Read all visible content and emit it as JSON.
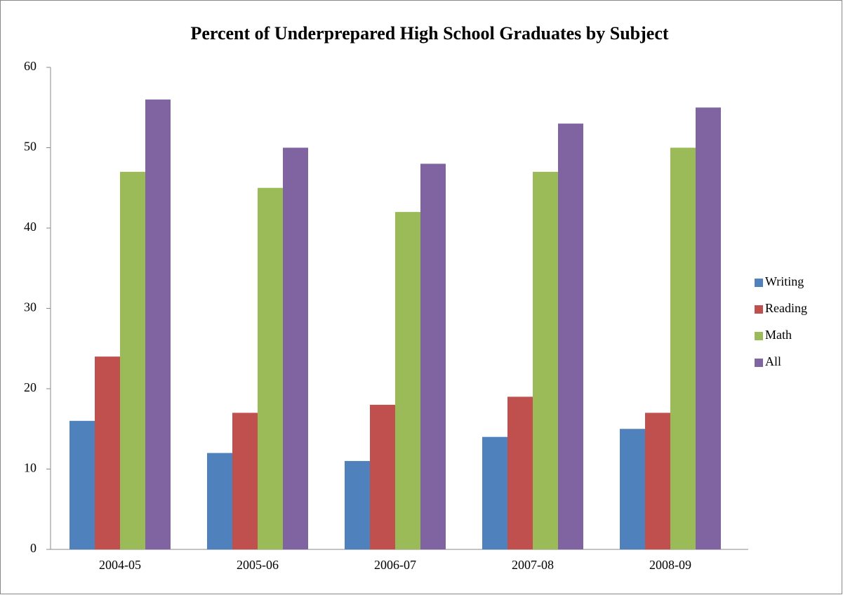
{
  "chart_data": {
    "type": "bar",
    "title": "Percent of Underprepared High School Graduates by Subject",
    "categories": [
      "2004-05",
      "2005-06",
      "2006-07",
      "2007-08",
      "2008-09"
    ],
    "series": [
      {
        "name": "Writing",
        "color": "#4f81bd",
        "values": [
          16,
          12,
          11,
          14,
          15
        ]
      },
      {
        "name": "Reading",
        "color": "#c0504d",
        "values": [
          24,
          17,
          18,
          19,
          17
        ]
      },
      {
        "name": "Math",
        "color": "#9bbb59",
        "values": [
          47,
          45,
          42,
          47,
          50
        ]
      },
      {
        "name": "All",
        "color": "#8064a2",
        "values": [
          56,
          50,
          48,
          53,
          55
        ]
      }
    ],
    "ylim": [
      0,
      60
    ],
    "yticks": [
      0,
      10,
      20,
      30,
      40,
      50,
      60
    ],
    "grid": false,
    "legend": "right"
  }
}
